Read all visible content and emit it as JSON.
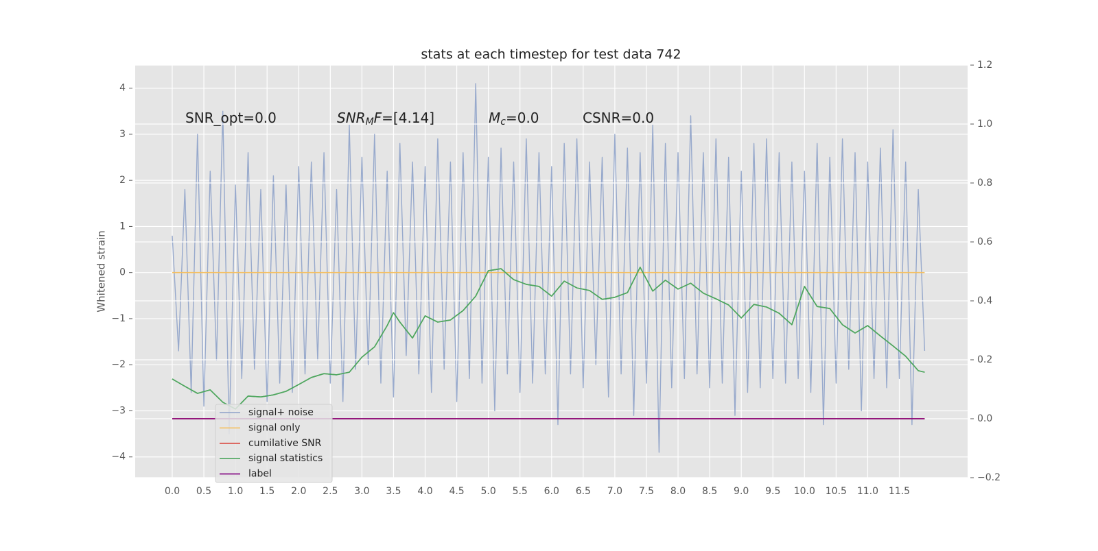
{
  "chart_data": {
    "type": "line",
    "title": "stats at each timestep for test data 742",
    "ylabel": "Whitened strain",
    "annotations": [
      [
        "SNR_opt=0.0"
      ],
      [
        "SNR",
        "M",
        "F=[4.14]"
      ],
      [
        "M",
        "c",
        "=0.0"
      ],
      [
        "CSNR=0.0"
      ]
    ],
    "xlim": [
      -0.586,
      12.58
    ],
    "ylim": [
      -4.45,
      4.5
    ],
    "y2lim": [
      -0.2,
      1.2
    ],
    "xticks": [
      {
        "value": 0,
        "label": "0.0"
      },
      {
        "value": 0.5,
        "label": "0.5"
      },
      {
        "value": 1,
        "label": "1.0"
      },
      {
        "value": 1.5,
        "label": "1.5"
      },
      {
        "value": 2,
        "label": "2.0"
      },
      {
        "value": 2.5,
        "label": "2.5"
      },
      {
        "value": 3,
        "label": "3.0"
      },
      {
        "value": 3.5,
        "label": "3.5"
      },
      {
        "value": 4,
        "label": "4.0"
      },
      {
        "value": 4.5,
        "label": "4.5"
      },
      {
        "value": 5,
        "label": "5.0"
      },
      {
        "value": 5.5,
        "label": "5.5"
      },
      {
        "value": 6,
        "label": "6.0"
      },
      {
        "value": 6.5,
        "label": "6.5"
      },
      {
        "value": 7,
        "label": "7.0"
      },
      {
        "value": 7.5,
        "label": "7.5"
      },
      {
        "value": 8,
        "label": "8.0"
      },
      {
        "value": 8.5,
        "label": "8.5"
      },
      {
        "value": 9,
        "label": "9.0"
      },
      {
        "value": 9.5,
        "label": "9.5"
      },
      {
        "value": 10,
        "label": "10.0"
      },
      {
        "value": 10.5,
        "label": "10.5"
      },
      {
        "value": 11,
        "label": "11.0"
      },
      {
        "value": 11.5,
        "label": "11.5"
      }
    ],
    "yticks": [
      {
        "value": -4,
        "label": "−4"
      },
      {
        "value": -3,
        "label": "−3"
      },
      {
        "value": -2,
        "label": "−2"
      },
      {
        "value": -1,
        "label": "−1"
      },
      0,
      1,
      2,
      3,
      4
    ],
    "y2ticks": [
      {
        "value": -0.2,
        "label": "−0.2"
      },
      {
        "value": 0,
        "label": "0.0"
      },
      {
        "value": 0.2,
        "label": "0.2"
      },
      {
        "value": 0.4,
        "label": "0.4"
      },
      {
        "value": 0.6,
        "label": "0.6"
      },
      {
        "value": 0.8,
        "label": "0.8"
      },
      {
        "value": 1.0,
        "label": "1.0"
      },
      {
        "value": 1.2,
        "label": "1.2"
      }
    ],
    "grid": true,
    "legend": "lower left",
    "series": [
      {
        "name": "signal+ noise",
        "color": "#8ea2c9",
        "x": [
          0.0,
          0.1,
          0.2,
          0.3,
          0.4,
          0.5,
          0.6,
          0.7,
          0.8,
          0.9,
          1.0,
          1.1,
          1.2,
          1.3,
          1.4,
          1.5,
          1.6,
          1.7,
          1.8,
          1.9,
          2.0,
          2.1,
          2.2,
          2.3,
          2.4,
          2.5,
          2.6,
          2.7,
          2.8,
          2.9,
          3.0,
          3.1,
          3.2,
          3.3,
          3.4,
          3.5,
          3.6,
          3.7,
          3.8,
          3.9,
          4.0,
          4.1,
          4.2,
          4.3,
          4.4,
          4.5,
          4.6,
          4.7,
          4.8,
          4.9,
          5.0,
          5.1,
          5.2,
          5.3,
          5.4,
          5.5,
          5.6,
          5.7,
          5.8,
          5.9,
          6.0,
          6.1,
          6.2,
          6.3,
          6.4,
          6.5,
          6.6,
          6.7,
          6.8,
          6.9,
          7.0,
          7.1,
          7.2,
          7.3,
          7.4,
          7.5,
          7.6,
          7.7,
          7.8,
          7.9,
          8.0,
          8.1,
          8.2,
          8.3,
          8.4,
          8.5,
          8.6,
          8.7,
          8.8,
          8.9,
          9.0,
          9.1,
          9.2,
          9.3,
          9.4,
          9.5,
          9.6,
          9.7,
          9.8,
          9.9,
          10.0,
          10.1,
          10.2,
          10.3,
          10.4,
          10.5,
          10.6,
          10.7,
          10.8,
          10.9,
          11.0,
          11.1,
          11.2,
          11.3,
          11.4,
          11.5,
          11.6,
          11.7,
          11.8,
          11.9
        ],
        "values": [
          0.8,
          -1.7,
          1.8,
          -2.6,
          3.0,
          -2.9,
          2.2,
          -1.9,
          3.5,
          -3.5,
          1.9,
          -2.3,
          2.6,
          -2.1,
          1.8,
          -2.8,
          2.1,
          -2.4,
          1.9,
          -2.6,
          2.3,
          -2.2,
          2.4,
          -1.9,
          2.6,
          -2.4,
          1.8,
          -2.8,
          3.2,
          -2.1,
          2.5,
          -2.0,
          3.0,
          -2.4,
          2.2,
          -2.7,
          2.8,
          -1.8,
          2.4,
          -2.2,
          2.3,
          -2.6,
          2.9,
          -2.1,
          2.4,
          -2.8,
          2.6,
          -2.3,
          4.1,
          -2.4,
          2.5,
          -3.0,
          2.7,
          -2.2,
          2.4,
          -2.6,
          2.9,
          -2.4,
          2.6,
          -2.2,
          2.3,
          -3.3,
          2.8,
          -2.2,
          2.9,
          -2.5,
          2.4,
          -2.0,
          2.5,
          -2.7,
          3.0,
          -2.2,
          2.7,
          -3.1,
          2.6,
          -2.4,
          3.2,
          -3.9,
          2.8,
          -2.5,
          2.6,
          -2.3,
          3.4,
          -2.2,
          2.6,
          -2.5,
          2.9,
          -2.4,
          2.5,
          -3.1,
          2.2,
          -2.6,
          2.8,
          -2.5,
          2.9,
          -2.3,
          2.6,
          -2.4,
          2.4,
          -2.3,
          2.2,
          -2.6,
          2.8,
          -3.3,
          2.5,
          -2.4,
          2.9,
          -2.1,
          2.6,
          -3.0,
          2.4,
          -2.3,
          2.7,
          -2.5,
          3.1,
          -2.3,
          2.4,
          -3.3,
          1.8,
          -1.7
        ]
      },
      {
        "name": "signal only",
        "color": "#f5bf5f",
        "x": [
          0.0,
          11.9
        ],
        "values": [
          0,
          0
        ]
      },
      {
        "name": "cumilative SNR",
        "color": "#d9443a",
        "axis": "y2",
        "x": [
          0.0,
          11.9
        ],
        "values": [
          0,
          0
        ]
      },
      {
        "name": "signal statistics",
        "color": "#4ea65e",
        "axis": "y2",
        "x": [
          0.0,
          0.2,
          0.4,
          0.6,
          0.8,
          1.0,
          1.2,
          1.4,
          1.6,
          1.8,
          2.0,
          2.2,
          2.4,
          2.6,
          2.8,
          3.0,
          3.2,
          3.4,
          3.5,
          3.6,
          3.8,
          4.0,
          4.2,
          4.4,
          4.6,
          4.8,
          5.0,
          5.2,
          5.4,
          5.6,
          5.8,
          6.0,
          6.2,
          6.4,
          6.6,
          6.8,
          7.0,
          7.2,
          7.4,
          7.6,
          7.8,
          8.0,
          8.2,
          8.4,
          8.6,
          8.8,
          9.0,
          9.2,
          9.4,
          9.6,
          9.8,
          10.0,
          10.2,
          10.4,
          10.6,
          10.8,
          11.0,
          11.2,
          11.4,
          11.6,
          11.8,
          11.9
        ],
        "values": [
          0.135,
          0.11,
          0.086,
          0.098,
          0.056,
          0.033,
          0.077,
          0.074,
          0.081,
          0.093,
          0.116,
          0.14,
          0.153,
          0.149,
          0.158,
          0.209,
          0.244,
          0.316,
          0.36,
          0.328,
          0.274,
          0.349,
          0.328,
          0.335,
          0.367,
          0.416,
          0.502,
          0.509,
          0.472,
          0.456,
          0.449,
          0.416,
          0.467,
          0.444,
          0.435,
          0.405,
          0.412,
          0.428,
          0.514,
          0.433,
          0.47,
          0.44,
          0.46,
          0.426,
          0.407,
          0.386,
          0.342,
          0.388,
          0.379,
          0.358,
          0.319,
          0.449,
          0.381,
          0.374,
          0.319,
          0.291,
          0.316,
          0.281,
          0.247,
          0.212,
          0.163,
          0.158
        ]
      },
      {
        "name": "label",
        "color": "#800080",
        "axis": "y2",
        "x": [
          0.0,
          11.9
        ],
        "values": [
          0,
          0
        ]
      }
    ]
  }
}
